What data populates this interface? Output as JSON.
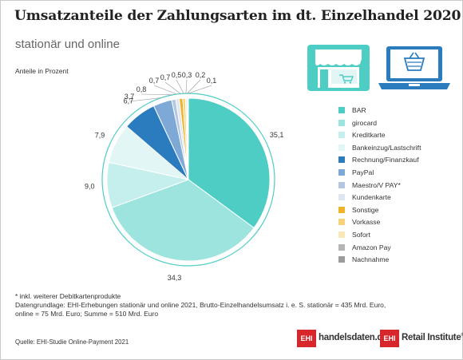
{
  "header": {
    "title": "Umsatzanteile der Zahlungsarten im dt. Einzelhandel 2020",
    "subtitle": "stationär und online",
    "unit_label": "Anteile in Prozent"
  },
  "chart_data": {
    "type": "pie",
    "title": "Umsatzanteile der Zahlungsarten im dt. Einzelhandel 2020",
    "subtitle": "stationär und online",
    "unit": "Anteile in Prozent",
    "categories": [
      "BAR",
      "girocard",
      "Kreditkarte",
      "Bankeinzug/Lastschrift",
      "Rechnung/Finanzkauf",
      "PayPal",
      "Maestro/V PAY*",
      "Kundenkarte",
      "Sonstige",
      "Vorkasse",
      "Sofort",
      "Amazon Pay",
      "Nachnahme"
    ],
    "values": [
      35.1,
      34.3,
      9.0,
      7.9,
      6.7,
      3.7,
      0.8,
      0.7,
      0.7,
      0.5,
      0.3,
      0.2,
      0.1
    ],
    "value_labels": [
      "35,1",
      "34,3",
      "9,0",
      "7,9",
      "6,7",
      "3,7",
      "0,8",
      "0,7",
      "0,7",
      "0,5",
      "0,3",
      "0,2",
      "0,1"
    ],
    "colors": [
      "#4ecdc4",
      "#9de3de",
      "#c4efec",
      "#e2f6f5",
      "#2b7bbf",
      "#7ea8d6",
      "#b3c7e3",
      "#dfe5f1",
      "#f0b429",
      "#f6d27a",
      "#fae7b9",
      "#b5b5b5",
      "#9c9c9c"
    ],
    "legend_position": "right"
  },
  "icons": {
    "store": "storefront-icon",
    "laptop": "laptop-shopping-icon"
  },
  "notes": {
    "footnote": "* inkl. weiterer Debitkartenprodukte",
    "basis_line1": "Datengrundlage: EHI-Erhebungen stationär und online 2021, Brutto-Einzelhandelsumsatz i. e. S. stationär = 435 Mrd. Euro,",
    "basis_line2": "online = 75 Mrd. Euro; Summe = 510 Mrd. Euro",
    "source": "Quelle: EHI-Studie Online-Payment 2021"
  },
  "logos": {
    "ehi_mark": "EHI",
    "handelsdaten": "handelsdaten.de",
    "retail_institute": "Retail Institute",
    "registered": "®"
  }
}
